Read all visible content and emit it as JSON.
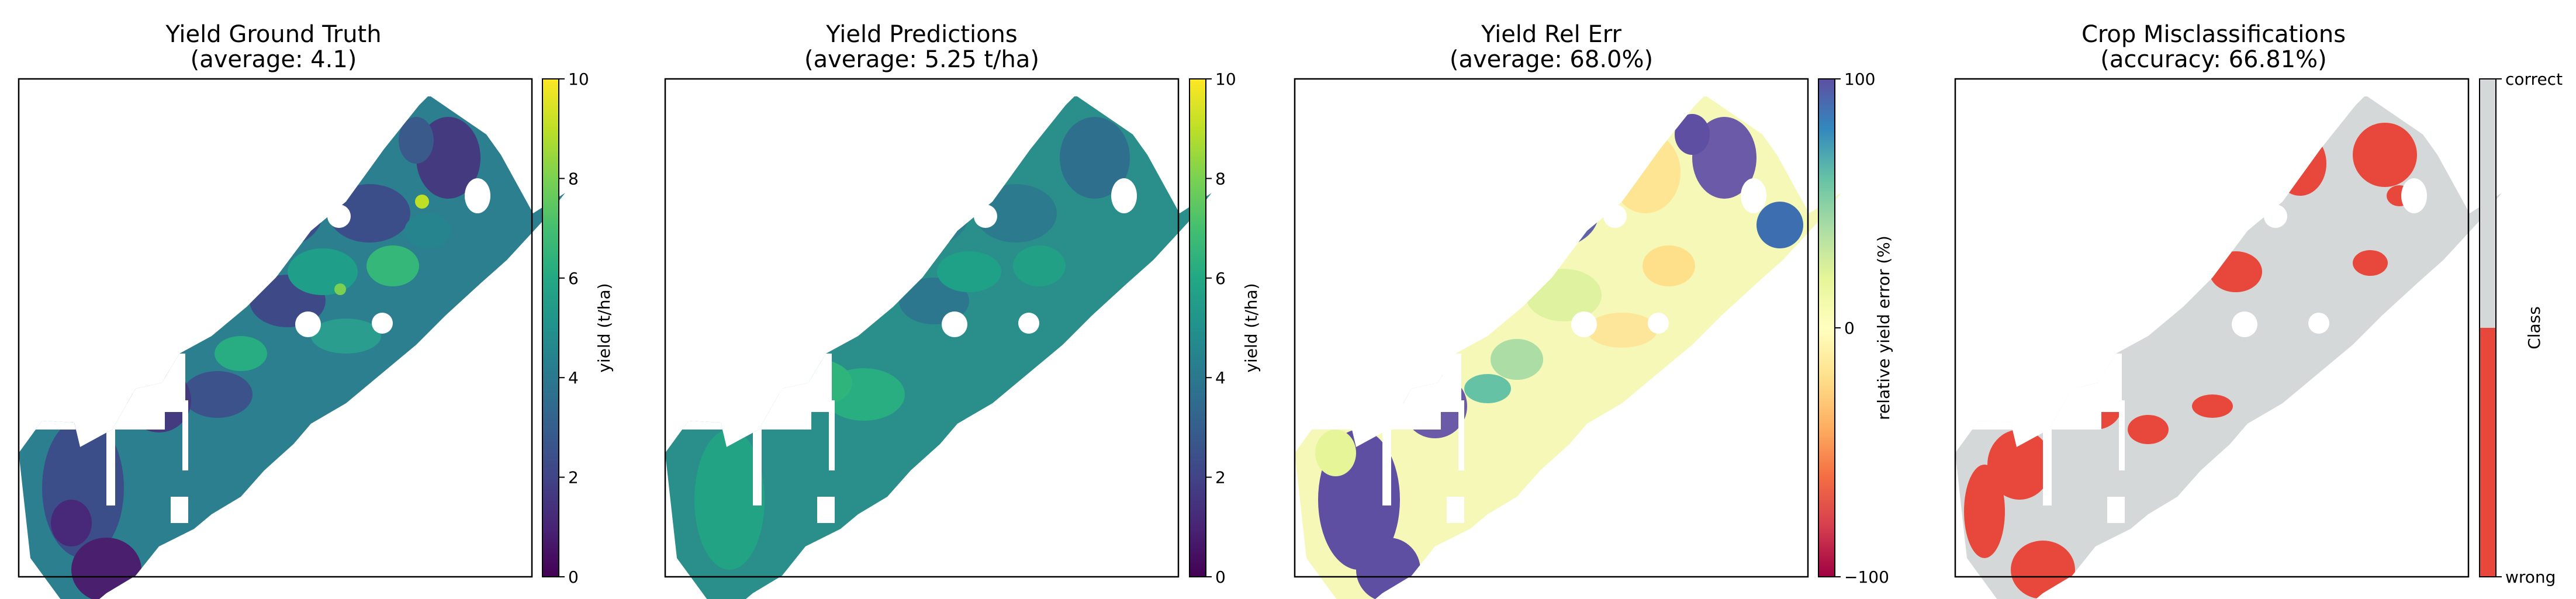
{
  "chart_data": [
    {
      "type": "heatmap",
      "title": "Yield Ground Truth",
      "subtitle": "(average: 4.1)",
      "colormap": "viridis",
      "colorbar": {
        "label": "yield (t/ha)",
        "range": [
          0,
          10
        ],
        "ticks": [
          "0",
          "2",
          "4",
          "6",
          "8",
          "10"
        ]
      },
      "grid": false
    },
    {
      "type": "heatmap",
      "title": "Yield Predictions",
      "subtitle": "(average: 5.25 t/ha)",
      "colormap": "viridis",
      "colorbar": {
        "label": "yield (t/ha)",
        "range": [
          0,
          10
        ],
        "ticks": [
          "0",
          "2",
          "4",
          "6",
          "8",
          "10"
        ]
      },
      "grid": false
    },
    {
      "type": "heatmap",
      "title": "Yield Rel Err",
      "subtitle": "(average: 68.0%)",
      "colormap": "Spectral",
      "colorbar": {
        "label": "relative yield error (%)",
        "range": [
          -100,
          100
        ],
        "ticks": [
          "−100",
          "0",
          "100"
        ]
      },
      "grid": false
    },
    {
      "type": "heatmap",
      "title": "Crop Misclassifications",
      "subtitle": "(accuracy: 66.81%)",
      "colormap": "categorical",
      "colorbar": {
        "label": "Class",
        "categories": [
          "wrong",
          "correct"
        ],
        "colors": [
          "#e8483b",
          "#d5d8d8"
        ]
      },
      "grid": false
    }
  ]
}
